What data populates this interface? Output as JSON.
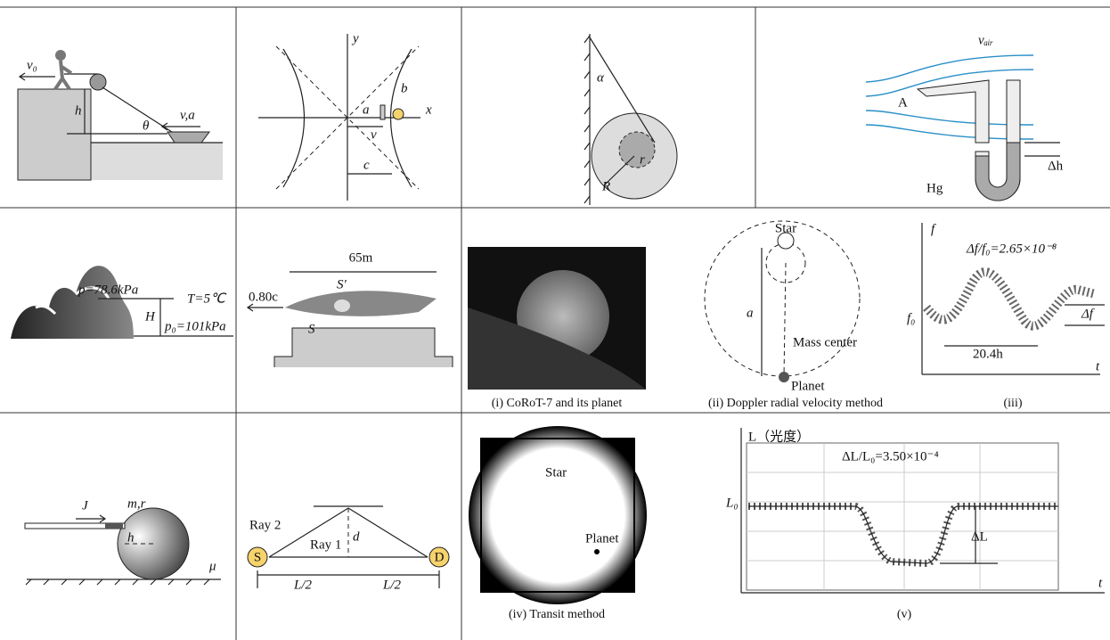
{
  "boat_pulley": {
    "labels": [
      "v₀",
      "h",
      "θ",
      "v,a"
    ]
  },
  "hyperbola": {
    "labels": [
      "y",
      "x",
      "b",
      "a",
      "v",
      "c"
    ]
  },
  "wall_sphere": {
    "labels": [
      "α",
      "R",
      "r"
    ]
  },
  "manometer": {
    "labels": [
      "vₐᵢᵣ",
      "A",
      "Δh",
      "Hg"
    ]
  },
  "mountain": {
    "labels": [
      "p=78.6kPa",
      "T=5℃",
      "H",
      "p₀=101kPa"
    ]
  },
  "rocket": {
    "labels": [
      "65m",
      "0.80c",
      "S′",
      "S"
    ]
  },
  "corot": {
    "caption": "(i) CoRoT-7 and its planet"
  },
  "doppler": {
    "labels": [
      "Star",
      "Mass center",
      "Planet",
      "a"
    ],
    "caption": "(ii) Doppler radial velocity method"
  },
  "frequency_plot": {
    "labels": [
      "f",
      "Δf/f₀=2.65×10⁻⁸",
      "f₀",
      "Δf",
      "20.4h",
      "t"
    ],
    "caption": "(iii)"
  },
  "rolling_ball": {
    "labels": [
      "J",
      "m,r",
      "h",
      "μ"
    ]
  },
  "rays": {
    "labels": [
      "Ray 2",
      "Ray 1",
      "d",
      "S",
      "D",
      "L/2",
      "L/2"
    ]
  },
  "transit": {
    "labels": [
      "Star",
      "Planet"
    ],
    "caption": "(iv) Transit method"
  },
  "light_curve": {
    "labels": [
      "L（光度）",
      "ΔL/L₀=3.50×10⁻⁴",
      "L₀",
      "ΔL",
      "t"
    ],
    "caption": "(v)"
  }
}
